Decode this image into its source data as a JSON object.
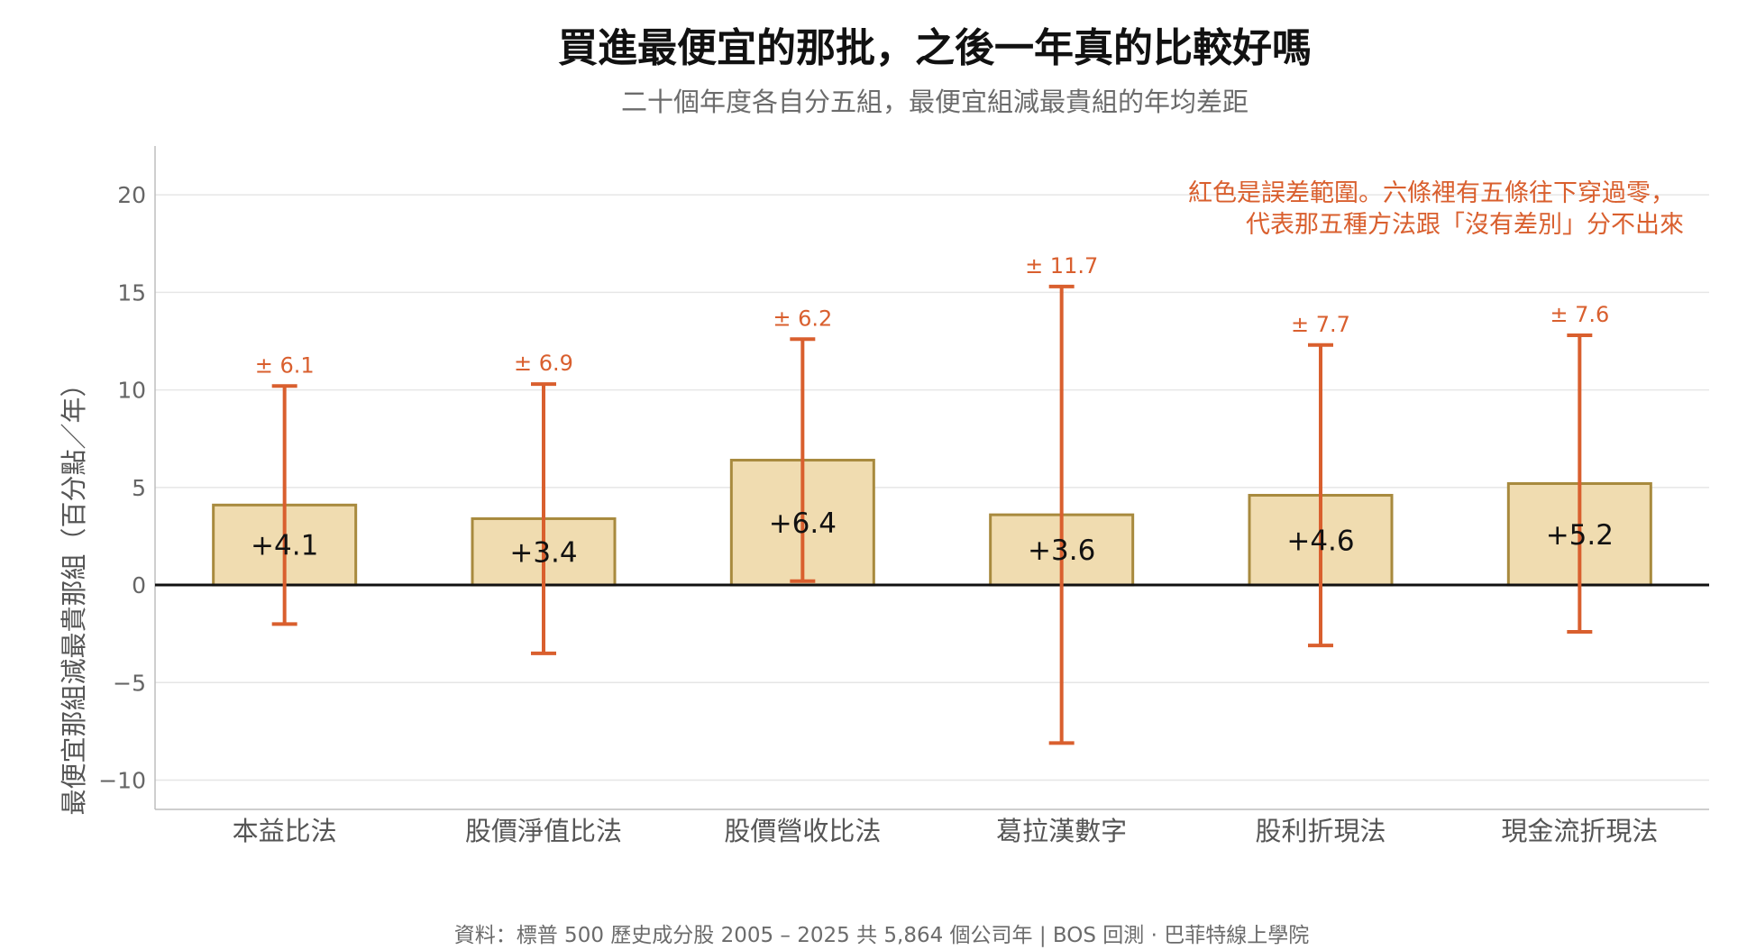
{
  "chart_data": {
    "type": "bar",
    "title": "買進最便宜的那批，之後一年真的比較好嗎",
    "subtitle": "二十個年度各自分五組，最便宜組減最貴組的年均差距",
    "ylabel": "最便宜那組減最貴那組（百分點／年）",
    "xlabel": "",
    "categories": [
      "本益比法",
      "股價淨值比法",
      "股價營收比法",
      "葛拉漢數字",
      "股利折現法",
      "現金流折現法"
    ],
    "values": [
      4.1,
      3.4,
      6.4,
      3.6,
      4.6,
      5.2
    ],
    "value_labels": [
      "+4.1",
      "+3.4",
      "+6.4",
      "+3.6",
      "+4.6",
      "+5.2"
    ],
    "errors": [
      6.1,
      6.9,
      6.2,
      11.7,
      7.7,
      7.6
    ],
    "error_labels": [
      "± 6.1",
      "± 6.9",
      "± 6.2",
      "± 11.7",
      "± 7.7",
      "± 7.6"
    ],
    "ylim": [
      -11.5,
      22.5
    ],
    "yticks": [
      20,
      15,
      10,
      5,
      0,
      -5,
      -10
    ],
    "ytick_labels": [
      "20",
      "15",
      "10",
      "5",
      "0",
      "−5",
      "−10"
    ],
    "grid": true,
    "annotation": {
      "lines": [
        "紅色是誤差範圍。六條裡有五條往下穿過零，",
        "代表那五種方法跟「沒有差別」分不出來"
      ],
      "placement": "top-right"
    },
    "colors": {
      "bar_fill": "#f0dcb0",
      "bar_edge": "#a88a3e",
      "error": "#d95f2e",
      "zero_line": "#111111",
      "grid": "#e6e6e6"
    }
  },
  "footer": "資料：標普 500 歷史成分股 2005 – 2025 共 5,864 個公司年 | BOS 回測 ·  巴菲特線上學院"
}
